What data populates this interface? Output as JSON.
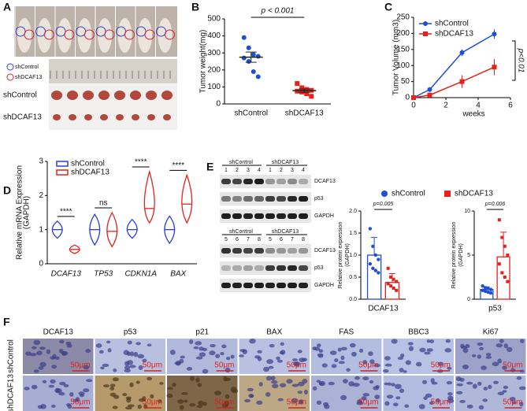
{
  "panel_labels": [
    "A",
    "B",
    "C",
    "D",
    "E",
    "F"
  ],
  "photo_a": {
    "legend": [
      "shControl",
      "shDCAF13"
    ],
    "rows": [
      "shControl",
      "shDCAF13"
    ]
  },
  "blot": {
    "groups": [
      "shControl",
      "shDCAF13"
    ],
    "lanes_top": [
      1,
      2,
      3,
      4
    ],
    "lanes_bottom": [
      5,
      6,
      7,
      8
    ],
    "proteins": [
      "DCAF13",
      "p53",
      "GAPDH"
    ]
  },
  "histology": {
    "columns": [
      "DCAF13",
      "p53",
      "p21",
      "BAX",
      "FAS",
      "BBC3",
      "Ki67"
    ],
    "rows": [
      "shControl",
      "shDCAF13"
    ],
    "scale": "50μm"
  },
  "chart_data": [
    {
      "type": "dot",
      "ylabel": "Tumor weight(mg)",
      "categories": [
        "shControl",
        "shDCAF13"
      ],
      "colors": [
        "#1f4fd6",
        "#e6211c"
      ],
      "values": [
        [
          390,
          330,
          290,
          280,
          270,
          250,
          190,
          160
        ],
        [
          120,
          95,
          85,
          80,
          75,
          70,
          60,
          45
        ]
      ],
      "means": [
        275,
        78
      ],
      "errors": [
        30,
        10
      ],
      "annotation": "p < 0.001",
      "ylim": [
        0,
        500
      ],
      "yticks": [
        0,
        100,
        200,
        300,
        400,
        500
      ]
    },
    {
      "type": "line",
      "ylabel": "Tumor Volume (mm3)",
      "xlabel": "weeks",
      "x": [
        0,
        1,
        3,
        5
      ],
      "xlim": [
        0,
        6
      ],
      "xticks": [
        0,
        2,
        4,
        6
      ],
      "ylim": [
        0,
        250
      ],
      "yticks": [
        0,
        50,
        100,
        150,
        200,
        250
      ],
      "legend": "top-left",
      "annotation": "p<0.01",
      "series": [
        {
          "name": "shControl",
          "color": "#1f4fd6",
          "values": [
            0,
            25,
            140,
            198
          ],
          "errors": [
            0,
            5,
            10,
            15
          ]
        },
        {
          "name": "shDCAF13",
          "color": "#e6211c",
          "values": [
            0,
            8,
            50,
            95
          ],
          "errors": [
            0,
            3,
            20,
            25
          ]
        }
      ]
    },
    {
      "type": "violin",
      "ylabel": [
        "Relative mRNA Expression",
        "(GAPDH)"
      ],
      "categories": [
        "DCAF13",
        "TP53",
        "CDKN1A",
        "BAX"
      ],
      "ylim": [
        0,
        3
      ],
      "yticks": [
        0,
        1,
        2,
        3
      ],
      "legend": "top-left",
      "significance": [
        "****",
        "ns",
        "****",
        "****"
      ],
      "series": [
        {
          "name": "shControl",
          "color": "#2a3fd6",
          "values": [
            1,
            1,
            1,
            1
          ],
          "lows": [
            0.75,
            0.55,
            0.75,
            0.6
          ],
          "highs": [
            1.25,
            1.45,
            1.3,
            1.4
          ]
        },
        {
          "name": "shDCAF13",
          "color": "#e6211c",
          "values": [
            0.42,
            0.95,
            1.62,
            1.75
          ],
          "lows": [
            0.3,
            0.5,
            1.2,
            1.2
          ],
          "highs": [
            0.55,
            1.5,
            2.7,
            2.6
          ]
        }
      ]
    },
    {
      "type": "bar",
      "ylabel": [
        "Relative protein expression",
        "(GAPDH)"
      ],
      "categories": [
        "DCAF13"
      ],
      "annotation": "p=0.005",
      "legend": "top",
      "ylim": [
        0,
        2
      ],
      "yticks": [
        {
          "value": 0,
          "label": "0.0"
        },
        0.5,
        {
          "value": 1,
          "label": "1.0"
        },
        1.5,
        {
          "value": 2,
          "label": "2.0"
        }
      ],
      "series": [
        {
          "name": "shControl",
          "color": "#1f4fd6",
          "values": [
            1.0
          ],
          "errors": [
            0.4
          ],
          "points": [
            1.6,
            1.2,
            1.0,
            0.9,
            0.8,
            0.7,
            0.65,
            0.6
          ]
        },
        {
          "name": "shDCAF13",
          "color": "#e6211c",
          "values": [
            0.38
          ],
          "errors": [
            0.2
          ],
          "points": [
            0.7,
            0.5,
            0.45,
            0.4,
            0.35,
            0.3,
            0.25,
            0.2
          ]
        }
      ]
    },
    {
      "type": "bar",
      "ylabel": [
        "Relative protein expression",
        "(GAPDH)"
      ],
      "categories": [
        "p53"
      ],
      "annotation": "p=0.006",
      "ylim": [
        0,
        10
      ],
      "yticks": [
        0,
        5,
        10
      ],
      "series": [
        {
          "color": "#1f4fd6",
          "values": [
            1.1
          ],
          "errors": [
            0.3
          ],
          "points": [
            1.5,
            1.3,
            1.2,
            1.1,
            1.0,
            0.9,
            0.8,
            0.7
          ]
        },
        {
          "color": "#e6211c",
          "values": [
            4.8
          ],
          "errors": [
            2.8
          ],
          "points": [
            9,
            7,
            6,
            5,
            4,
            3,
            2.5,
            2
          ]
        }
      ]
    }
  ]
}
